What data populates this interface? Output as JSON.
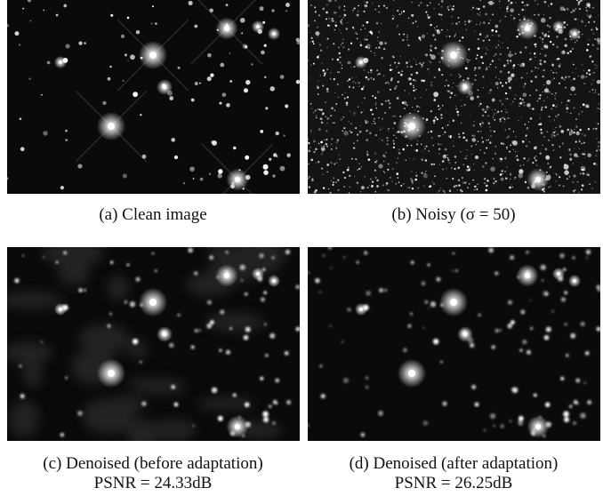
{
  "figure": {
    "panels": [
      {
        "caption": "(a) Clean image"
      },
      {
        "caption": "(b) Noisy (σ = 50)"
      },
      {
        "caption": "(c) Denoised (before adaptation)",
        "metric": "PSNR = 24.33dB"
      },
      {
        "caption": "(d) Denoised (after adaptation)",
        "metric": "PSNR = 26.25dB"
      }
    ]
  }
}
